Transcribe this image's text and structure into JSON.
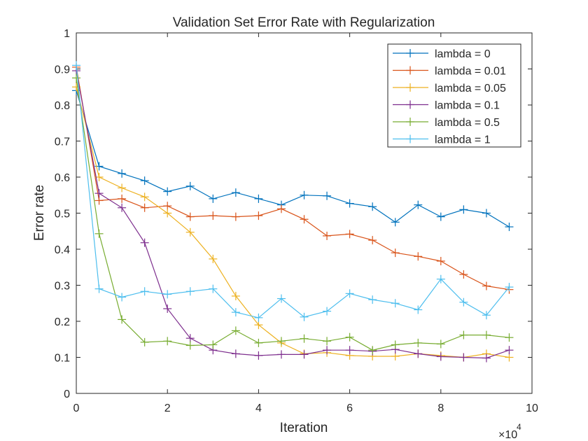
{
  "chart_data": {
    "type": "line",
    "title": "Validation Set Error Rate with Regularization",
    "xlabel": "Iteration",
    "ylabel": "Error rate",
    "x_exponent_label": "×10",
    "x_exponent_power": "4",
    "xlim": [
      0,
      10
    ],
    "ylim": [
      0,
      1
    ],
    "x_ticks": [
      0,
      2,
      4,
      6,
      8,
      10
    ],
    "x_tick_labels": [
      "0",
      "2",
      "4",
      "6",
      "8",
      "10"
    ],
    "y_ticks": [
      0,
      0.1,
      0.2,
      0.3,
      0.4,
      0.5,
      0.6,
      0.7,
      0.8,
      0.9,
      1
    ],
    "y_tick_labels": [
      "0",
      "0.1",
      "0.2",
      "0.3",
      "0.4",
      "0.5",
      "0.6",
      "0.7",
      "0.8",
      "0.9",
      "1"
    ],
    "grid": false,
    "legend_position": "top-right",
    "marker": "+",
    "x": [
      0,
      0.5,
      1,
      1.5,
      2,
      2.5,
      3,
      3.5,
      4,
      4.5,
      5,
      5.5,
      6,
      6.5,
      7,
      7.5,
      8,
      8.5,
      9,
      9.5
    ],
    "series": [
      {
        "name": "lambda = 0",
        "color": "#0072BD",
        "values": [
          0.84,
          0.63,
          0.61,
          0.59,
          0.56,
          0.575,
          0.54,
          0.557,
          0.54,
          0.523,
          0.55,
          0.548,
          0.527,
          0.518,
          0.475,
          0.523,
          0.49,
          0.51,
          0.5,
          0.462
        ]
      },
      {
        "name": "lambda = 0.01",
        "color": "#D95319",
        "values": [
          0.905,
          0.535,
          0.54,
          0.515,
          0.52,
          0.49,
          0.493,
          0.49,
          0.493,
          0.512,
          0.483,
          0.437,
          0.442,
          0.425,
          0.39,
          0.38,
          0.367,
          0.33,
          0.298,
          0.288
        ]
      },
      {
        "name": "lambda = 0.05",
        "color": "#EDB120",
        "values": [
          0.85,
          0.6,
          0.57,
          0.545,
          0.5,
          0.447,
          0.373,
          0.27,
          0.19,
          0.14,
          0.11,
          0.113,
          0.105,
          0.103,
          0.103,
          0.11,
          0.105,
          0.1,
          0.11,
          0.1
        ]
      },
      {
        "name": "lambda = 0.1",
        "color": "#7E2F8E",
        "values": [
          0.895,
          0.555,
          0.515,
          0.418,
          0.235,
          0.153,
          0.12,
          0.11,
          0.105,
          0.108,
          0.108,
          0.12,
          0.12,
          0.117,
          0.122,
          0.11,
          0.102,
          0.1,
          0.098,
          0.12
        ]
      },
      {
        "name": "lambda = 0.5",
        "color": "#77AC30",
        "values": [
          0.875,
          0.443,
          0.205,
          0.142,
          0.145,
          0.133,
          0.135,
          0.174,
          0.14,
          0.145,
          0.152,
          0.145,
          0.156,
          0.12,
          0.135,
          0.14,
          0.137,
          0.162,
          0.162,
          0.155
        ]
      },
      {
        "name": "lambda = 1",
        "color": "#4DBEEE",
        "values": [
          0.91,
          0.29,
          0.267,
          0.283,
          0.275,
          0.283,
          0.29,
          0.225,
          0.21,
          0.263,
          0.212,
          0.228,
          0.277,
          0.26,
          0.25,
          0.232,
          0.317,
          0.253,
          0.217,
          0.295
        ]
      }
    ]
  }
}
